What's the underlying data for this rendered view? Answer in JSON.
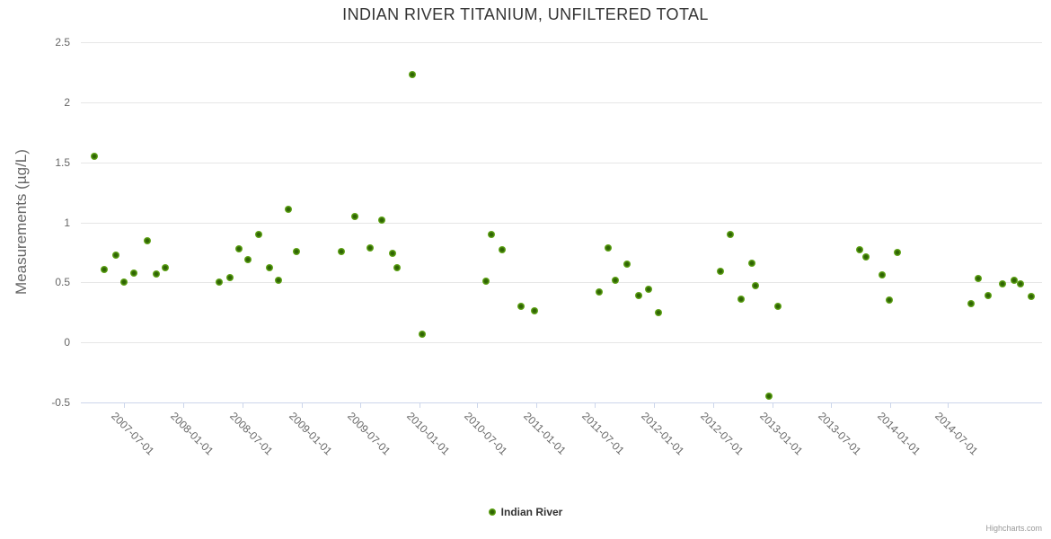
{
  "chart": {
    "credits": "Highcharts.com",
    "colors": {
      "marker_outer": "#76b82a",
      "marker_mid": "#569a10",
      "marker_core": "#2f6404",
      "grid": "#e6e6e6",
      "axis_line": "#ccd6eb",
      "label": "#666666",
      "title": "#333333",
      "credits": "#999999"
    }
  },
  "chart_data": {
    "type": "scatter",
    "title": "INDIAN RIVER TITANIUM, UNFILTERED TOTAL",
    "xlabel": "",
    "ylabel": "Measurements (µg/L)",
    "ylim": [
      -0.5,
      2.5
    ],
    "grid": "horizontal-only",
    "legend_position": "bottom-center",
    "yticks": [
      {
        "v": -0.5,
        "label": "-0.5"
      },
      {
        "v": 0,
        "label": "0"
      },
      {
        "v": 0.5,
        "label": "0.5"
      },
      {
        "v": 1,
        "label": "1"
      },
      {
        "v": 1.5,
        "label": "1.5"
      },
      {
        "v": 2,
        "label": "2"
      },
      {
        "v": 2.5,
        "label": "2.5"
      }
    ],
    "xticks": [
      "2007-07-01",
      "2008-01-01",
      "2008-07-01",
      "2009-01-01",
      "2009-07-01",
      "2010-01-01",
      "2010-07-01",
      "2011-01-01",
      "2011-07-01",
      "2012-01-01",
      "2012-07-01",
      "2013-01-01",
      "2013-07-01",
      "2014-01-01",
      "2014-07-01"
    ],
    "series": [
      {
        "name": "Indian River",
        "points": [
          [
            "2007-03-30",
            1.55
          ],
          [
            "2007-04-29",
            0.61
          ],
          [
            "2007-06-04",
            0.73
          ],
          [
            "2007-07-01",
            0.5
          ],
          [
            "2007-08-01",
            0.58
          ],
          [
            "2007-09-10",
            0.85
          ],
          [
            "2007-10-09",
            0.57
          ],
          [
            "2007-11-06",
            0.62
          ],
          [
            "2008-04-20",
            0.5
          ],
          [
            "2008-05-23",
            0.54
          ],
          [
            "2008-06-20",
            0.78
          ],
          [
            "2008-07-20",
            0.69
          ],
          [
            "2008-08-21",
            0.9
          ],
          [
            "2008-09-23",
            0.62
          ],
          [
            "2008-10-21",
            0.52
          ],
          [
            "2008-11-22",
            1.11
          ],
          [
            "2008-12-17",
            0.76
          ],
          [
            "2009-05-04",
            0.76
          ],
          [
            "2009-06-16",
            1.05
          ],
          [
            "2009-08-02",
            0.79
          ],
          [
            "2009-09-08",
            1.02
          ],
          [
            "2009-10-11",
            0.74
          ],
          [
            "2009-10-25",
            0.62
          ],
          [
            "2009-12-12",
            2.23
          ],
          [
            "2010-01-10",
            0.07
          ],
          [
            "2010-07-28",
            0.51
          ],
          [
            "2010-08-14",
            0.9
          ],
          [
            "2010-09-16",
            0.77
          ],
          [
            "2010-11-14",
            0.3
          ],
          [
            "2010-12-26",
            0.26
          ],
          [
            "2011-07-14",
            0.42
          ],
          [
            "2011-08-10",
            0.79
          ],
          [
            "2011-09-01",
            0.52
          ],
          [
            "2011-10-08",
            0.65
          ],
          [
            "2011-11-14",
            0.39
          ],
          [
            "2011-12-13",
            0.44
          ],
          [
            "2012-01-13",
            0.25
          ],
          [
            "2012-07-25",
            0.59
          ],
          [
            "2012-08-25",
            0.9
          ],
          [
            "2012-09-27",
            0.36
          ],
          [
            "2012-10-30",
            0.66
          ],
          [
            "2012-11-09",
            0.47
          ],
          [
            "2012-12-23",
            -0.45
          ],
          [
            "2013-01-18",
            0.3
          ],
          [
            "2013-09-30",
            0.77
          ],
          [
            "2013-10-20",
            0.71
          ],
          [
            "2013-12-08",
            0.56
          ],
          [
            "2013-12-30",
            0.35
          ],
          [
            "2014-01-25",
            0.75
          ],
          [
            "2014-09-11",
            0.32
          ],
          [
            "2014-10-02",
            0.53
          ],
          [
            "2014-11-02",
            0.39
          ],
          [
            "2014-12-17",
            0.49
          ],
          [
            "2015-01-22",
            0.52
          ],
          [
            "2015-02-11",
            0.49
          ],
          [
            "2015-03-17",
            0.38
          ]
        ]
      }
    ]
  }
}
